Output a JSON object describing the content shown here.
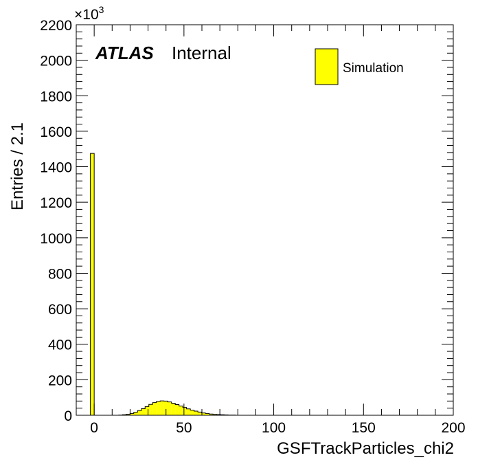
{
  "chart_data": {
    "type": "bar",
    "label_text": "ATLAS",
    "label_suffix": "Internal",
    "xlabel": "GSFTrackParticles_chi2",
    "ylabel": "Entries / 2.1",
    "y_multiplier_base": "×10",
    "y_multiplier_exp": "3",
    "xlim": [
      -10,
      200
    ],
    "ylim": [
      0,
      2200
    ],
    "x_ticks": [
      0,
      50,
      100,
      150,
      200
    ],
    "y_ticks": [
      0,
      200,
      400,
      600,
      800,
      1000,
      1200,
      1400,
      1600,
      1800,
      2000,
      2200
    ],
    "bin_width": 2.1,
    "legend": {
      "position": "top-right",
      "entries": [
        "Simulation"
      ]
    },
    "fill_color": "#ffff00",
    "edge_color": "#000000",
    "series": [
      {
        "name": "Simulation",
        "bins": [
          {
            "x": -1.05,
            "y": 1475
          },
          {
            "x": 14.7,
            "y": 1
          },
          {
            "x": 16.8,
            "y": 3
          },
          {
            "x": 18.9,
            "y": 6
          },
          {
            "x": 21.0,
            "y": 10
          },
          {
            "x": 23.1,
            "y": 17
          },
          {
            "x": 25.2,
            "y": 26
          },
          {
            "x": 27.3,
            "y": 37
          },
          {
            "x": 29.4,
            "y": 49
          },
          {
            "x": 31.5,
            "y": 61
          },
          {
            "x": 33.6,
            "y": 71
          },
          {
            "x": 35.7,
            "y": 78
          },
          {
            "x": 37.8,
            "y": 81
          },
          {
            "x": 39.9,
            "y": 80
          },
          {
            "x": 42.0,
            "y": 75
          },
          {
            "x": 44.1,
            "y": 68
          },
          {
            "x": 46.2,
            "y": 60
          },
          {
            "x": 48.3,
            "y": 52
          },
          {
            "x": 50.4,
            "y": 44
          },
          {
            "x": 52.5,
            "y": 36
          },
          {
            "x": 54.6,
            "y": 29
          },
          {
            "x": 56.7,
            "y": 23
          },
          {
            "x": 58.8,
            "y": 18
          },
          {
            "x": 60.9,
            "y": 13
          },
          {
            "x": 63.0,
            "y": 10
          },
          {
            "x": 65.1,
            "y": 7
          },
          {
            "x": 67.2,
            "y": 5
          },
          {
            "x": 69.3,
            "y": 4
          },
          {
            "x": 71.4,
            "y": 3
          },
          {
            "x": 73.5,
            "y": 2
          },
          {
            "x": 75.6,
            "y": 1
          },
          {
            "x": 77.7,
            "y": 1
          }
        ]
      }
    ]
  }
}
